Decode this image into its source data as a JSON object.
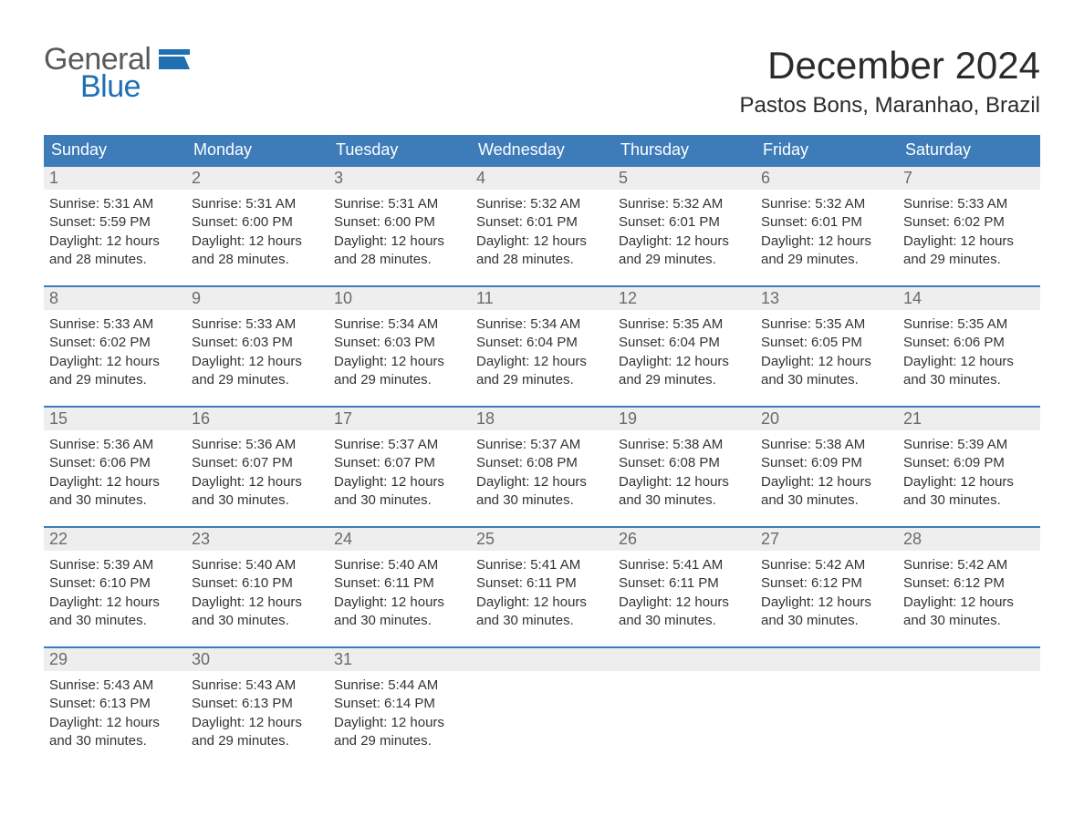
{
  "logo": {
    "general": "General",
    "blue": "Blue"
  },
  "title": "December 2024",
  "location": "Pastos Bons, Maranhao, Brazil",
  "colors": {
    "header_bg": "#3d7cb8",
    "header_text": "#ffffff",
    "daynum_bg": "#eeeeee",
    "daynum_text": "#6b6b6b",
    "body_text": "#333333",
    "rule": "#3d7cb8",
    "logo_gray": "#5a5a5a",
    "logo_blue": "#1f6fb2",
    "page_bg": "#ffffff"
  },
  "fonts": {
    "title_pt": 42,
    "location_pt": 24,
    "weekday_pt": 18,
    "daynum_pt": 18,
    "body_pt": 15
  },
  "weekdays": [
    "Sunday",
    "Monday",
    "Tuesday",
    "Wednesday",
    "Thursday",
    "Friday",
    "Saturday"
  ],
  "weeks": [
    [
      {
        "n": "1",
        "sunrise": "Sunrise: 5:31 AM",
        "sunset": "Sunset: 5:59 PM",
        "d1": "Daylight: 12 hours",
        "d2": "and 28 minutes."
      },
      {
        "n": "2",
        "sunrise": "Sunrise: 5:31 AM",
        "sunset": "Sunset: 6:00 PM",
        "d1": "Daylight: 12 hours",
        "d2": "and 28 minutes."
      },
      {
        "n": "3",
        "sunrise": "Sunrise: 5:31 AM",
        "sunset": "Sunset: 6:00 PM",
        "d1": "Daylight: 12 hours",
        "d2": "and 28 minutes."
      },
      {
        "n": "4",
        "sunrise": "Sunrise: 5:32 AM",
        "sunset": "Sunset: 6:01 PM",
        "d1": "Daylight: 12 hours",
        "d2": "and 28 minutes."
      },
      {
        "n": "5",
        "sunrise": "Sunrise: 5:32 AM",
        "sunset": "Sunset: 6:01 PM",
        "d1": "Daylight: 12 hours",
        "d2": "and 29 minutes."
      },
      {
        "n": "6",
        "sunrise": "Sunrise: 5:32 AM",
        "sunset": "Sunset: 6:01 PM",
        "d1": "Daylight: 12 hours",
        "d2": "and 29 minutes."
      },
      {
        "n": "7",
        "sunrise": "Sunrise: 5:33 AM",
        "sunset": "Sunset: 6:02 PM",
        "d1": "Daylight: 12 hours",
        "d2": "and 29 minutes."
      }
    ],
    [
      {
        "n": "8",
        "sunrise": "Sunrise: 5:33 AM",
        "sunset": "Sunset: 6:02 PM",
        "d1": "Daylight: 12 hours",
        "d2": "and 29 minutes."
      },
      {
        "n": "9",
        "sunrise": "Sunrise: 5:33 AM",
        "sunset": "Sunset: 6:03 PM",
        "d1": "Daylight: 12 hours",
        "d2": "and 29 minutes."
      },
      {
        "n": "10",
        "sunrise": "Sunrise: 5:34 AM",
        "sunset": "Sunset: 6:03 PM",
        "d1": "Daylight: 12 hours",
        "d2": "and 29 minutes."
      },
      {
        "n": "11",
        "sunrise": "Sunrise: 5:34 AM",
        "sunset": "Sunset: 6:04 PM",
        "d1": "Daylight: 12 hours",
        "d2": "and 29 minutes."
      },
      {
        "n": "12",
        "sunrise": "Sunrise: 5:35 AM",
        "sunset": "Sunset: 6:04 PM",
        "d1": "Daylight: 12 hours",
        "d2": "and 29 minutes."
      },
      {
        "n": "13",
        "sunrise": "Sunrise: 5:35 AM",
        "sunset": "Sunset: 6:05 PM",
        "d1": "Daylight: 12 hours",
        "d2": "and 30 minutes."
      },
      {
        "n": "14",
        "sunrise": "Sunrise: 5:35 AM",
        "sunset": "Sunset: 6:06 PM",
        "d1": "Daylight: 12 hours",
        "d2": "and 30 minutes."
      }
    ],
    [
      {
        "n": "15",
        "sunrise": "Sunrise: 5:36 AM",
        "sunset": "Sunset: 6:06 PM",
        "d1": "Daylight: 12 hours",
        "d2": "and 30 minutes."
      },
      {
        "n": "16",
        "sunrise": "Sunrise: 5:36 AM",
        "sunset": "Sunset: 6:07 PM",
        "d1": "Daylight: 12 hours",
        "d2": "and 30 minutes."
      },
      {
        "n": "17",
        "sunrise": "Sunrise: 5:37 AM",
        "sunset": "Sunset: 6:07 PM",
        "d1": "Daylight: 12 hours",
        "d2": "and 30 minutes."
      },
      {
        "n": "18",
        "sunrise": "Sunrise: 5:37 AM",
        "sunset": "Sunset: 6:08 PM",
        "d1": "Daylight: 12 hours",
        "d2": "and 30 minutes."
      },
      {
        "n": "19",
        "sunrise": "Sunrise: 5:38 AM",
        "sunset": "Sunset: 6:08 PM",
        "d1": "Daylight: 12 hours",
        "d2": "and 30 minutes."
      },
      {
        "n": "20",
        "sunrise": "Sunrise: 5:38 AM",
        "sunset": "Sunset: 6:09 PM",
        "d1": "Daylight: 12 hours",
        "d2": "and 30 minutes."
      },
      {
        "n": "21",
        "sunrise": "Sunrise: 5:39 AM",
        "sunset": "Sunset: 6:09 PM",
        "d1": "Daylight: 12 hours",
        "d2": "and 30 minutes."
      }
    ],
    [
      {
        "n": "22",
        "sunrise": "Sunrise: 5:39 AM",
        "sunset": "Sunset: 6:10 PM",
        "d1": "Daylight: 12 hours",
        "d2": "and 30 minutes."
      },
      {
        "n": "23",
        "sunrise": "Sunrise: 5:40 AM",
        "sunset": "Sunset: 6:10 PM",
        "d1": "Daylight: 12 hours",
        "d2": "and 30 minutes."
      },
      {
        "n": "24",
        "sunrise": "Sunrise: 5:40 AM",
        "sunset": "Sunset: 6:11 PM",
        "d1": "Daylight: 12 hours",
        "d2": "and 30 minutes."
      },
      {
        "n": "25",
        "sunrise": "Sunrise: 5:41 AM",
        "sunset": "Sunset: 6:11 PM",
        "d1": "Daylight: 12 hours",
        "d2": "and 30 minutes."
      },
      {
        "n": "26",
        "sunrise": "Sunrise: 5:41 AM",
        "sunset": "Sunset: 6:11 PM",
        "d1": "Daylight: 12 hours",
        "d2": "and 30 minutes."
      },
      {
        "n": "27",
        "sunrise": "Sunrise: 5:42 AM",
        "sunset": "Sunset: 6:12 PM",
        "d1": "Daylight: 12 hours",
        "d2": "and 30 minutes."
      },
      {
        "n": "28",
        "sunrise": "Sunrise: 5:42 AM",
        "sunset": "Sunset: 6:12 PM",
        "d1": "Daylight: 12 hours",
        "d2": "and 30 minutes."
      }
    ],
    [
      {
        "n": "29",
        "sunrise": "Sunrise: 5:43 AM",
        "sunset": "Sunset: 6:13 PM",
        "d1": "Daylight: 12 hours",
        "d2": "and 30 minutes."
      },
      {
        "n": "30",
        "sunrise": "Sunrise: 5:43 AM",
        "sunset": "Sunset: 6:13 PM",
        "d1": "Daylight: 12 hours",
        "d2": "and 29 minutes."
      },
      {
        "n": "31",
        "sunrise": "Sunrise: 5:44 AM",
        "sunset": "Sunset: 6:14 PM",
        "d1": "Daylight: 12 hours",
        "d2": "and 29 minutes."
      },
      null,
      null,
      null,
      null
    ]
  ]
}
